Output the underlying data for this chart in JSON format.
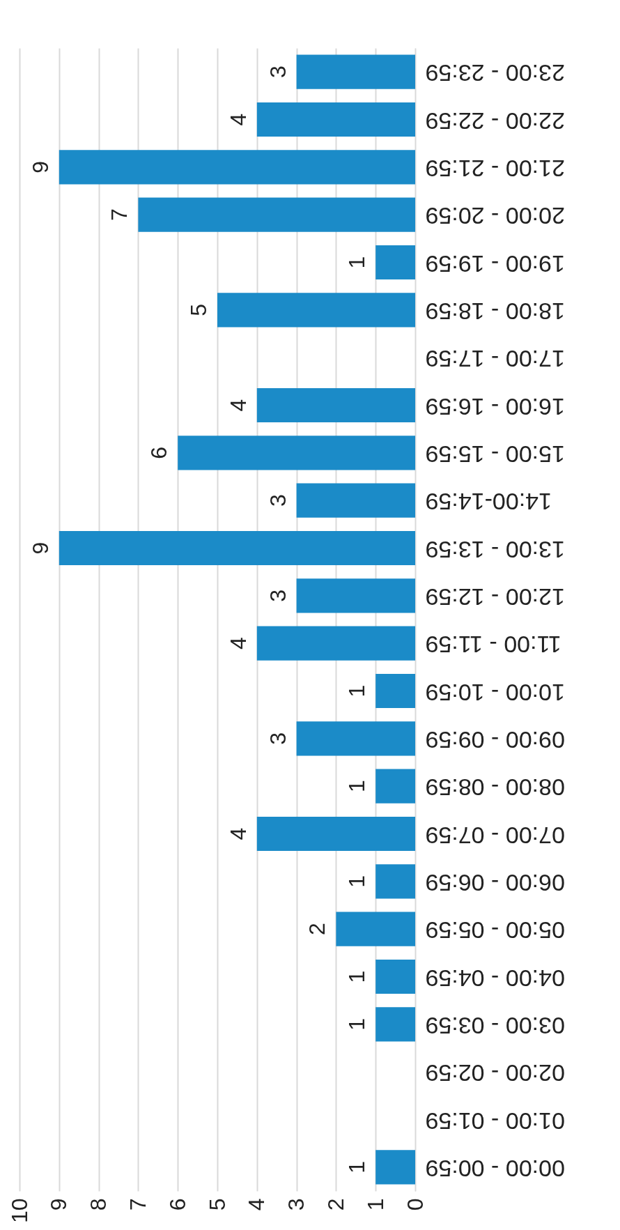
{
  "chart_data": {
    "type": "bar",
    "orientation": "horizontal",
    "categories": [
      "23:00 - 23:59",
      "22:00 - 22:59",
      "21:00 - 21:59",
      "20:00 - 20:59",
      "19:00 - 19:59",
      "18:00 - 18:59",
      "17:00 - 17:59",
      "16:00 - 16:59",
      "15:00 - 15:59",
      "14:00-14:59",
      "13:00 - 13:59",
      "12:00 - 12:59",
      "11:00 - 11:59",
      "10:00 - 10:59",
      "09:00 - 09:59",
      "08:00 - 08:59",
      "07:00 - 07:59",
      "06:00 - 06:59",
      "05:00 - 05:59",
      "04:00 - 04:59",
      "03:00 - 03:59",
      "02:00 - 02:59",
      "01:00 - 01:59",
      "00:00 - 00:59"
    ],
    "values": [
      3,
      4,
      9,
      7,
      1,
      5,
      0,
      4,
      6,
      3,
      9,
      3,
      4,
      1,
      3,
      1,
      4,
      1,
      2,
      1,
      1,
      0,
      0,
      1
    ],
    "value_labels": [
      "3",
      "4",
      "9",
      "7",
      "1",
      "5",
      null,
      "4",
      "6",
      "3",
      "9",
      "3",
      "4",
      "1",
      "3",
      "1",
      "4",
      "1",
      "2",
      "1",
      "1",
      null,
      null,
      "1"
    ],
    "color": "#1b8bc8",
    "xlim": [
      10,
      0
    ],
    "xticks": [
      0,
      1,
      2,
      3,
      4,
      5,
      6,
      7,
      8,
      9,
      10
    ],
    "grid": "x"
  }
}
